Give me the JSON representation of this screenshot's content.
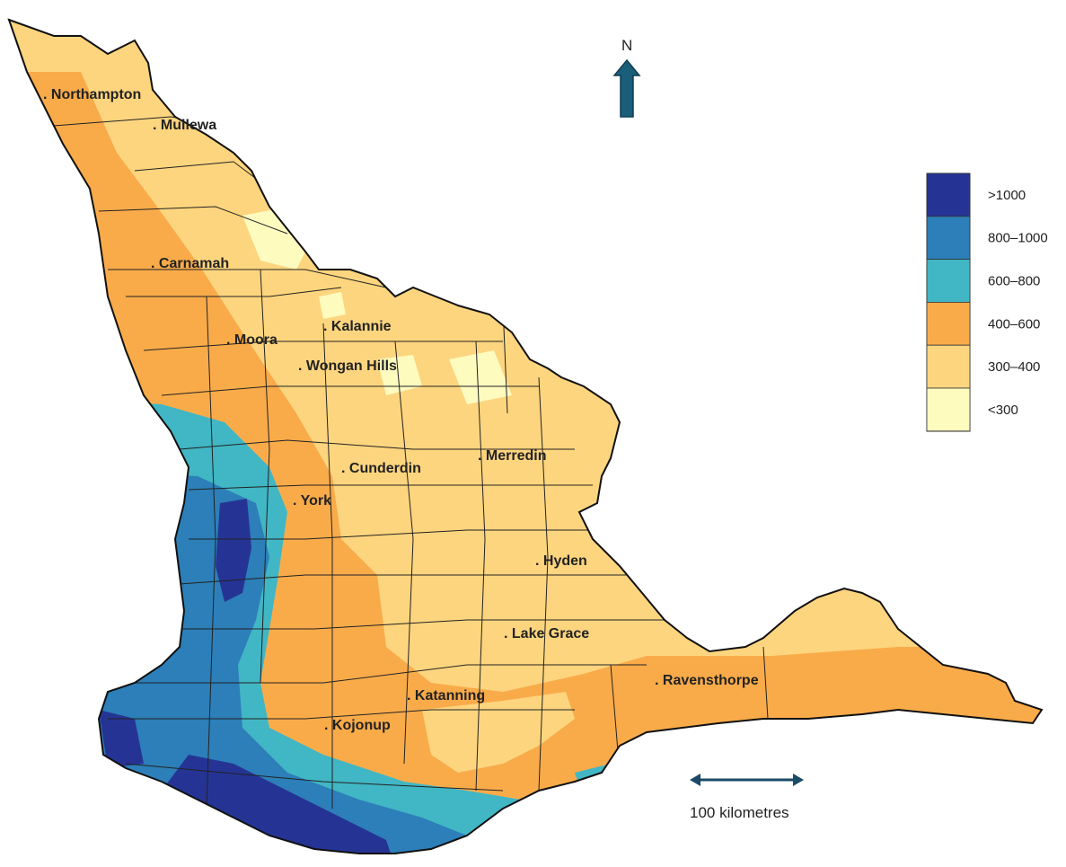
{
  "map": {
    "north_label": "N",
    "scale_label": "100 kilometres",
    "towns": [
      {
        "id": "northampton",
        "name": ". Northampton"
      },
      {
        "id": "mullewa",
        "name": ". Mullewa"
      },
      {
        "id": "carnamah",
        "name": ". Carnamah"
      },
      {
        "id": "moora",
        "name": ". Moora"
      },
      {
        "id": "kalannie",
        "name": ". Kalannie"
      },
      {
        "id": "wongan-hills",
        "name": ". Wongan Hills"
      },
      {
        "id": "cunderdin",
        "name": ". Cunderdin"
      },
      {
        "id": "merredin",
        "name": ". Merredin"
      },
      {
        "id": "york",
        "name": ". York"
      },
      {
        "id": "hyden",
        "name": ". Hyden"
      },
      {
        "id": "lake-grace",
        "name": ". Lake Grace"
      },
      {
        "id": "ravensthorpe",
        "name": ". Ravensthorpe"
      },
      {
        "id": "katanning",
        "name": ". Katanning"
      },
      {
        "id": "kojonup",
        "name": ". Kojonup"
      }
    ]
  },
  "legend": {
    "items": [
      {
        "label": ">1000",
        "color": "#253494"
      },
      {
        "label": "800–1000",
        "color": "#2c7fb8"
      },
      {
        "label": "600–800",
        "color": "#41b6c4"
      },
      {
        "label": "400–600",
        "color": "#f9ab4a"
      },
      {
        "label": "300–400",
        "color": "#fdd57e"
      },
      {
        "label": "<300",
        "color": "#fefbbf"
      }
    ]
  }
}
